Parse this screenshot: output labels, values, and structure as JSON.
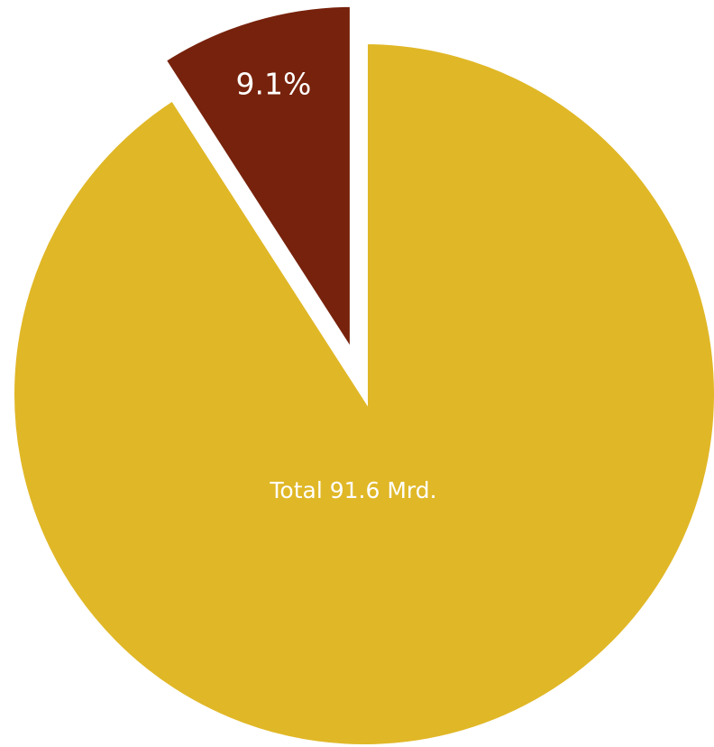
{
  "chart_data": {
    "type": "pie",
    "values": [
      9.1,
      90.9
    ],
    "value_labels": [
      "9.1%",
      null
    ],
    "colors": [
      "#77220c",
      "#e0b726"
    ],
    "explode": [
      true,
      false
    ],
    "annotation": "Total 91.6 Mrd."
  }
}
